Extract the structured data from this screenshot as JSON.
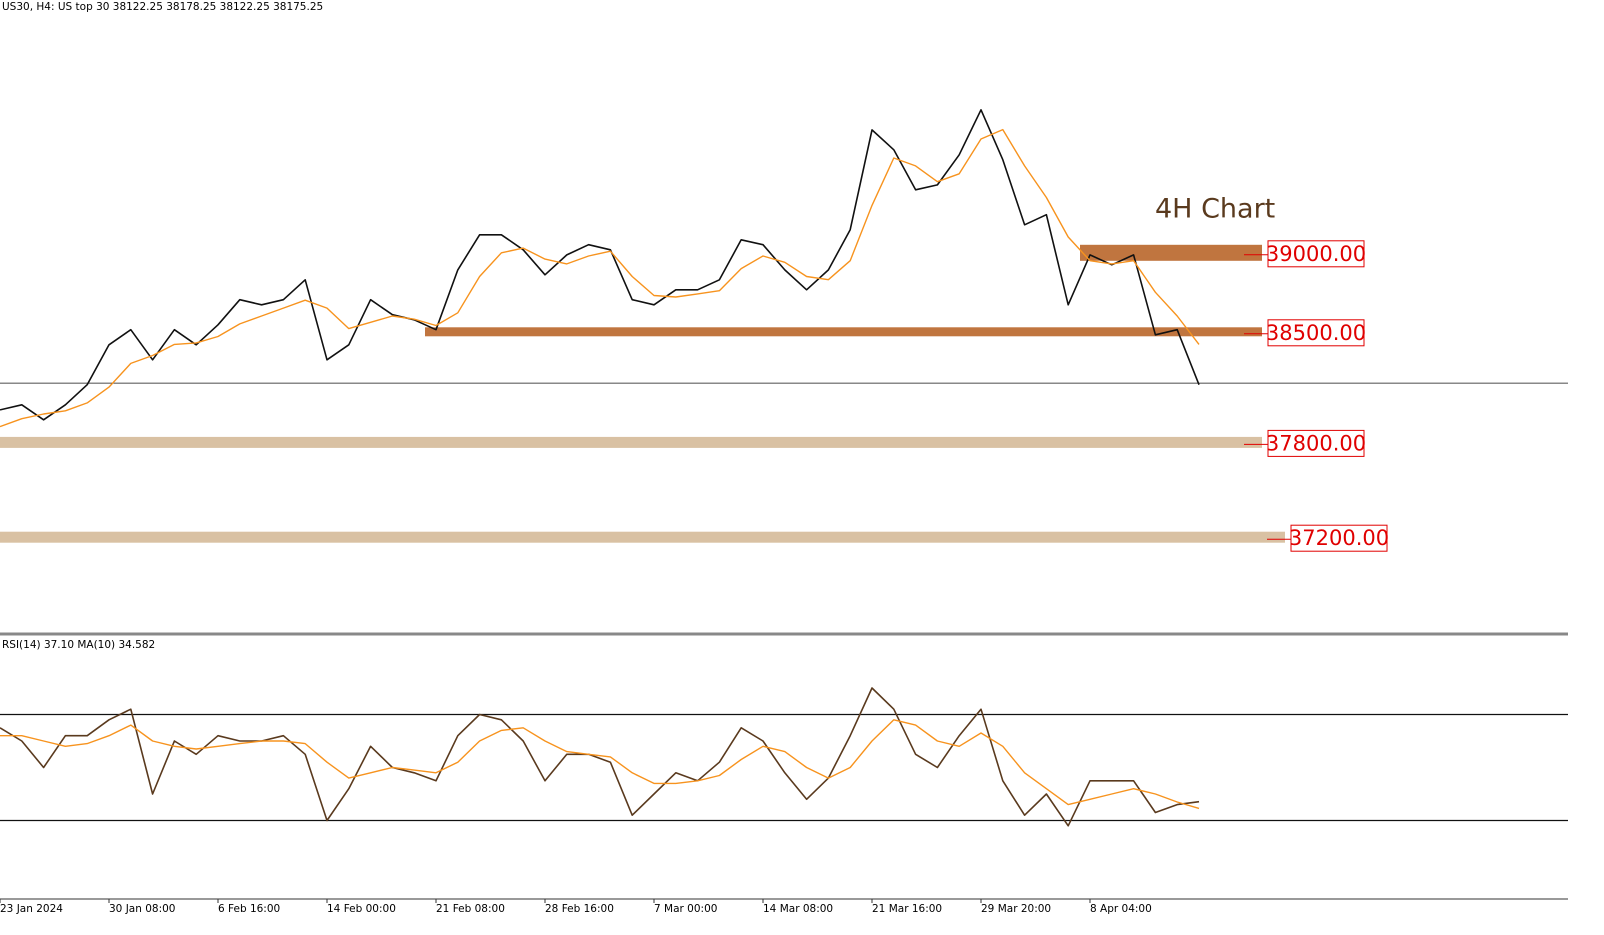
{
  "chart_data": [
    {
      "type": "line",
      "header": "US30, H4:  US top 30  38122.25 38178.25 38122.25 38175.25",
      "annotation": "4H Chart",
      "ylim": [
        36600,
        40600
      ],
      "xlim": [
        0,
        55
      ],
      "current_price": 38175.25,
      "series": [
        {
          "color": "#111111",
          "values": [
            38006,
            38038,
            37943,
            38038,
            38165,
            38418,
            38513,
            38323,
            38513,
            38418,
            38544,
            38703,
            38671,
            38703,
            38829,
            38323,
            38418,
            38703,
            38608,
            38576,
            38513,
            38892,
            39114,
            39114,
            39019,
            38861,
            38987,
            39051,
            39019,
            38703,
            38671,
            38766,
            38766,
            38829,
            39082,
            39051,
            38892,
            38766,
            38892,
            39146,
            39778,
            39652,
            39399,
            39430,
            39620,
            39905,
            39589,
            39177,
            39241,
            38671,
            38987,
            38924,
            38987,
            38481,
            38513,
            38165
          ]
        },
        {
          "color": "#f7931e",
          "values": [
            37900,
            37950,
            37980,
            38000,
            38050,
            38150,
            38300,
            38350,
            38420,
            38430,
            38470,
            38550,
            38600,
            38650,
            38700,
            38650,
            38520,
            38560,
            38600,
            38580,
            38540,
            38620,
            38850,
            39000,
            39030,
            38960,
            38930,
            38980,
            39010,
            38850,
            38730,
            38720,
            38740,
            38760,
            38900,
            38980,
            38940,
            38850,
            38830,
            38950,
            39300,
            39600,
            39550,
            39450,
            39500,
            39720,
            39780,
            39550,
            39350,
            39100,
            38950,
            38930,
            38950,
            38750,
            38600,
            38420
          ]
        }
      ],
      "levels": [
        {
          "value": 39000,
          "label": "39000.00",
          "color": "#c0753f"
        },
        {
          "value": 38500,
          "label": "38500.00",
          "color": "#c0753f"
        },
        {
          "value": 37800,
          "label": "37800.00",
          "color": "#d9c1a3"
        },
        {
          "value": 37200,
          "label": "37200.00",
          "color": "#d9c1a3"
        }
      ]
    },
    {
      "type": "line",
      "header": "RSI(14) 37.10 MA(10) 34.582",
      "ylim": [
        0,
        100
      ],
      "xlim": [
        0,
        55
      ],
      "levels": [
        70,
        30
      ],
      "series": [
        {
          "color": "#5a3a1e",
          "values": [
            65,
            60,
            50,
            62,
            62,
            68,
            72,
            40,
            60,
            55,
            62,
            60,
            60,
            62,
            55,
            30,
            42,
            58,
            50,
            48,
            45,
            62,
            70,
            68,
            60,
            45,
            55,
            55,
            52,
            32,
            40,
            48,
            45,
            52,
            65,
            60,
            48,
            38,
            46,
            62,
            80,
            72,
            55,
            50,
            62,
            72,
            45,
            32,
            40,
            28,
            45,
            45,
            45,
            33,
            36,
            37.1
          ]
        },
        {
          "color": "#f7931e",
          "values": [
            62,
            62,
            60,
            58,
            59,
            62,
            66,
            60,
            58,
            57,
            58,
            59,
            60,
            60,
            59,
            52,
            46,
            48,
            50,
            49,
            48,
            52,
            60,
            64,
            65,
            60,
            56,
            55,
            54,
            48,
            44,
            44,
            45,
            47,
            53,
            58,
            56,
            50,
            46,
            50,
            60,
            68,
            66,
            60,
            58,
            63,
            58,
            48,
            42,
            36,
            38,
            40,
            42,
            40,
            37,
            34.582
          ]
        }
      ],
      "xticks": [
        {
          "value": 0,
          "label": "23 Jan 2024"
        },
        {
          "value": 5,
          "label": "30 Jan 08:00"
        },
        {
          "value": 10,
          "label": "6 Feb 16:00"
        },
        {
          "value": 15,
          "label": "14 Feb 00:00"
        },
        {
          "value": 20,
          "label": "21 Feb 08:00"
        },
        {
          "value": 25,
          "label": "28 Feb 16:00"
        },
        {
          "value": 30,
          "label": "7 Mar 00:00"
        },
        {
          "value": 35,
          "label": "14 Mar 08:00"
        },
        {
          "value": 40,
          "label": "21 Mar 16:00"
        },
        {
          "value": 45,
          "label": "29 Mar 20:00"
        },
        {
          "value": 50,
          "label": "8 Apr 04:00"
        }
      ]
    }
  ]
}
